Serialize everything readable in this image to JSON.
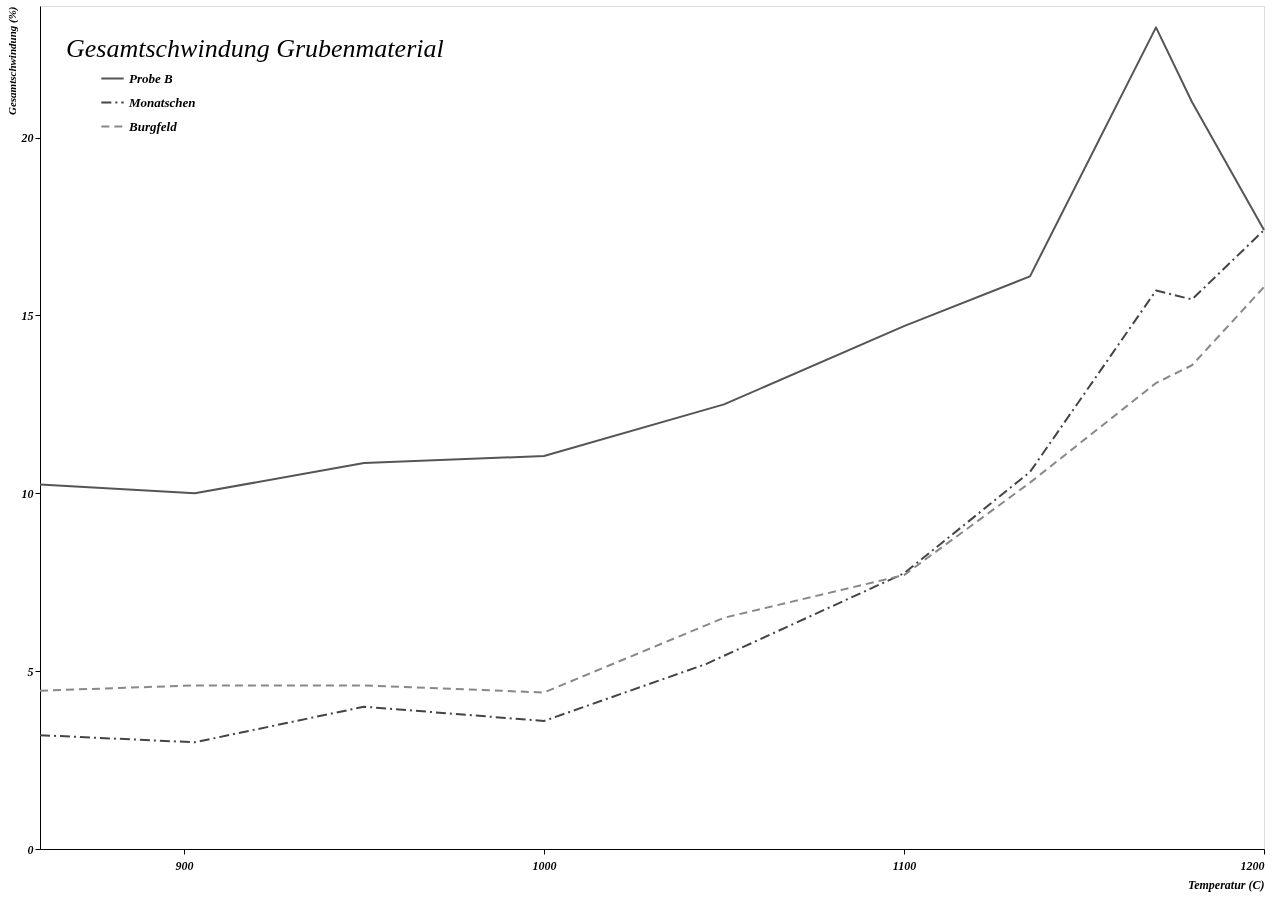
{
  "chart_data": {
    "type": "line",
    "title": "Gesamtschwindung Grubenmaterial",
    "xlabel": "Temperatur (C)",
    "ylabel": "Gesamtschwindung (%)",
    "xlim": [
      860,
      1200
    ],
    "xticks": [
      900,
      1000,
      1100,
      1200
    ],
    "ylim": [
      0,
      23.7
    ],
    "yticks": [
      0,
      5,
      10,
      15,
      20
    ],
    "grid": false,
    "legend": "top left",
    "marker": "none",
    "series": [
      {
        "name": "Probe B",
        "color": "#555555",
        "line_style": "solid",
        "x": [
          860,
          903,
          950,
          1000,
          1050,
          1100,
          1135,
          1170,
          1180,
          1200
        ],
        "values": [
          10.25,
          10.0,
          10.85,
          11.05,
          12.5,
          14.7,
          16.1,
          23.1,
          21.0,
          17.4
        ]
      },
      {
        "name": "Monatschen",
        "color": "#444444",
        "line_style": "dashdot",
        "x": [
          860,
          903,
          950,
          1000,
          1045,
          1100,
          1135,
          1170,
          1180,
          1200
        ],
        "values": [
          3.2,
          3.0,
          4.0,
          3.6,
          5.2,
          7.75,
          10.6,
          15.7,
          15.45,
          17.4
        ]
      },
      {
        "name": "Burgfeld",
        "color": "#888888",
        "line_style": "dashed",
        "x": [
          860,
          903,
          950,
          1000,
          1050,
          1100,
          1135,
          1170,
          1180,
          1200
        ],
        "values": [
          4.45,
          4.6,
          4.6,
          4.4,
          6.5,
          7.7,
          10.3,
          13.1,
          13.6,
          15.8
        ]
      }
    ]
  }
}
